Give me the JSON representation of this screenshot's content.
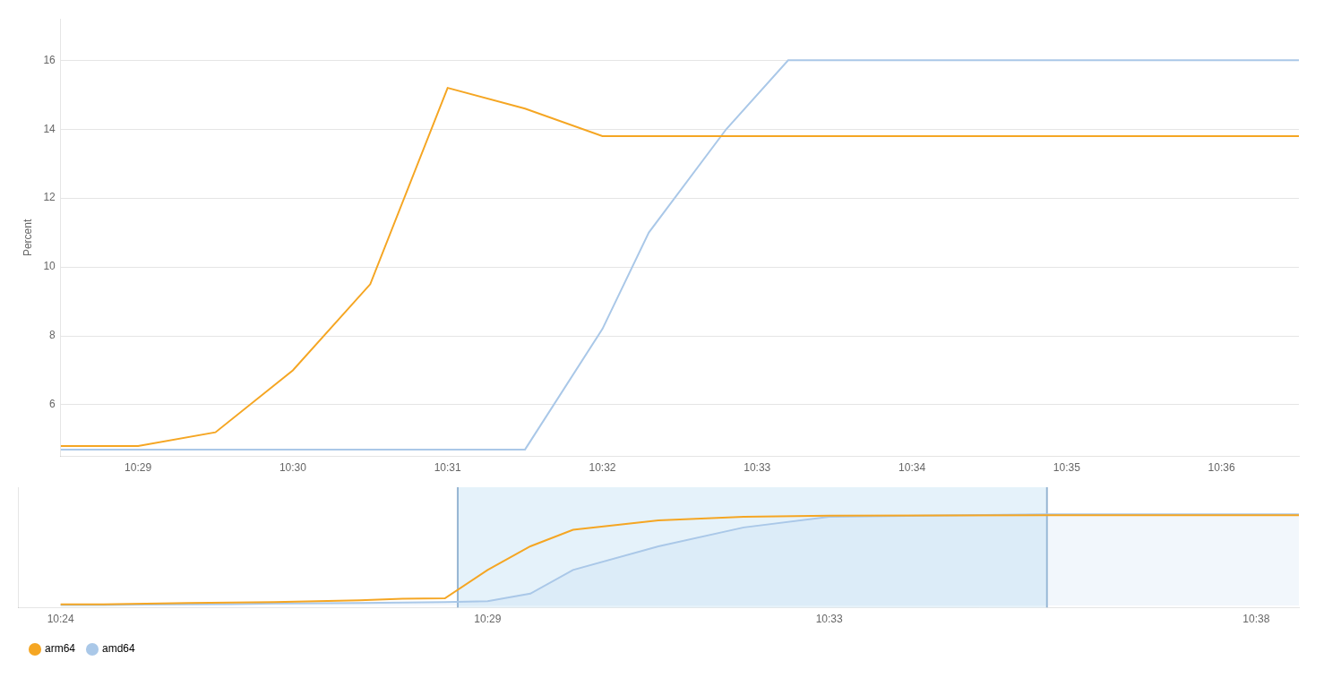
{
  "chart_data": [
    {
      "type": "line",
      "ylabel": "Percent",
      "xlim": [
        628.5,
        636.5
      ],
      "xticks": [
        {
          "value": 629,
          "label": "10:29"
        },
        {
          "value": 630,
          "label": "10:30"
        },
        {
          "value": 631,
          "label": "10:31"
        },
        {
          "value": 632,
          "label": "10:32"
        },
        {
          "value": 633,
          "label": "10:33"
        },
        {
          "value": 634,
          "label": "10:34"
        },
        {
          "value": 635,
          "label": "10:35"
        },
        {
          "value": 636,
          "label": "10:36"
        }
      ],
      "ylim": [
        4.5,
        17.2
      ],
      "yticks": [
        6,
        8,
        10,
        12,
        14,
        16
      ],
      "grid": "y",
      "series": [
        {
          "name": "arm64",
          "color": "#f5a623",
          "x": [
            628.5,
            629.0,
            629.5,
            630.0,
            630.5,
            631.0,
            631.5,
            632.0,
            632.5,
            633.0,
            633.5,
            634.0,
            636.5
          ],
          "values": [
            4.8,
            4.8,
            5.2,
            7.0,
            9.5,
            15.2,
            14.6,
            13.8,
            13.8,
            13.8,
            13.8,
            13.8,
            13.8
          ]
        },
        {
          "name": "amd64",
          "color": "#aac8e8",
          "x": [
            628.5,
            629.0,
            629.5,
            630.0,
            630.5,
            631.0,
            631.5,
            632.0,
            632.3,
            632.8,
            633.2,
            633.5,
            636.5
          ],
          "values": [
            4.7,
            4.7,
            4.7,
            4.7,
            4.7,
            4.7,
            4.7,
            8.2,
            11.0,
            14.0,
            16.0,
            16.0,
            16.0
          ]
        }
      ]
    },
    {
      "type": "line",
      "xlim": [
        623.5,
        638.5
      ],
      "xticks": [
        {
          "value": 624,
          "label": "10:24"
        },
        {
          "value": 629,
          "label": "10:29"
        },
        {
          "value": 633,
          "label": "10:33"
        },
        {
          "value": 638,
          "label": "10:38"
        }
      ],
      "ylim": [
        -0.1,
        5.0
      ],
      "tick_labels": "x",
      "legend": "lower left",
      "zoom_window": {
        "start": 628.65,
        "end": 635.55,
        "color": "#daedf8"
      },
      "series": [
        {
          "name": "arm64",
          "color": "#f5a623",
          "type": "line",
          "x": [
            624.0,
            624.5,
            625.0,
            625.5,
            626.0,
            626.5,
            627.0,
            627.5,
            628.0,
            628.5,
            629.0,
            629.5,
            630.0,
            631.0,
            632.0,
            633.0,
            635.5,
            638.5
          ],
          "values": [
            0.05,
            0.05,
            0.07,
            0.1,
            0.12,
            0.14,
            0.18,
            0.22,
            0.28,
            0.3,
            1.5,
            2.5,
            3.2,
            3.6,
            3.75,
            3.8,
            3.82,
            3.82
          ]
        },
        {
          "name": "amd64",
          "color": "#aac8e8",
          "type": "area",
          "x": [
            624.0,
            624.5,
            625.0,
            625.5,
            626.0,
            626.5,
            627.0,
            627.5,
            628.0,
            628.5,
            629.0,
            629.5,
            630.0,
            631.0,
            632.0,
            633.0,
            635.5,
            638.5
          ],
          "values": [
            0.02,
            0.02,
            0.04,
            0.05,
            0.06,
            0.08,
            0.09,
            0.1,
            0.12,
            0.14,
            0.18,
            0.5,
            1.5,
            2.5,
            3.3,
            3.75,
            3.85,
            3.85
          ]
        }
      ]
    }
  ]
}
